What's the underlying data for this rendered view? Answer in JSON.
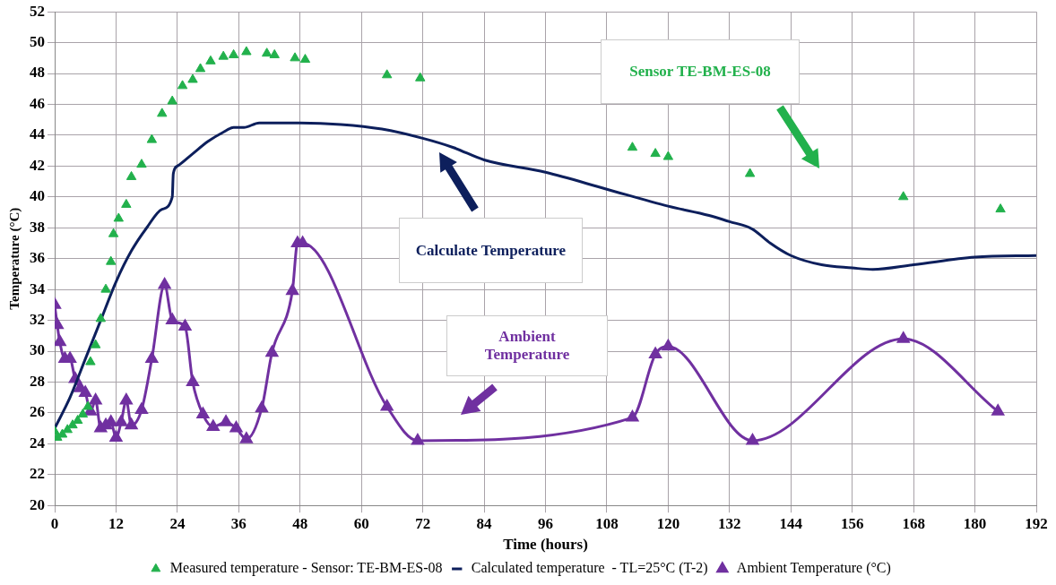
{
  "chart_data": {
    "type": "line",
    "xlabel": "Time (hours)",
    "ylabel": "Temperature (°C)",
    "xlim": [
      0,
      192
    ],
    "xticks": [
      0,
      12,
      24,
      36,
      48,
      60,
      72,
      84,
      96,
      108,
      120,
      132,
      144,
      156,
      168,
      180,
      192
    ],
    "ylim": [
      20,
      52
    ],
    "yticks": [
      20,
      22,
      24,
      26,
      28,
      30,
      32,
      34,
      36,
      38,
      40,
      42,
      44,
      46,
      48,
      50,
      52
    ],
    "grid": true,
    "legend": "bottom",
    "series": [
      {
        "name": "Measured temperature - Sensor: TE-BM-ES-08",
        "type": "scatter",
        "marker": "triangle",
        "color": "#22b14c",
        "x": [
          0,
          0.5,
          1.5,
          2.5,
          3.5,
          4.5,
          5.5,
          6.5,
          7,
          8,
          9,
          10,
          11,
          11.5,
          12.5,
          14,
          15,
          17,
          19,
          21,
          23,
          25,
          27,
          28.5,
          30.5,
          33,
          35,
          37.5,
          41.5,
          43,
          47,
          49,
          65,
          71.5,
          113,
          117.5,
          120,
          136,
          166,
          185
        ],
        "values": [
          24.8,
          24.4,
          24.6,
          24.9,
          25.2,
          25.5,
          25.9,
          26.4,
          29.3,
          30.4,
          32.1,
          34,
          35.8,
          37.6,
          38.6,
          39.5,
          41.3,
          42.1,
          43.7,
          45.4,
          46.2,
          47.2,
          47.6,
          48.3,
          48.8,
          49.1,
          49.2,
          49.4,
          49.3,
          49.2,
          49,
          48.9,
          47.9,
          47.7,
          43.2,
          42.8,
          42.6,
          41.5,
          40,
          39.2
        ]
      },
      {
        "name": "Calculated temperature  - TL=25°C (T-2)",
        "marker": "none",
        "color": "#0d1f5c",
        "x": [
          0,
          3,
          6,
          9,
          12,
          15,
          18,
          21,
          23,
          23.2,
          24,
          27,
          30,
          33,
          35,
          37,
          40,
          48,
          56,
          64,
          72,
          78,
          84,
          96,
          108,
          120,
          128,
          132,
          136,
          137,
          140,
          144,
          150,
          156,
          160,
          168,
          180,
          192
        ],
        "values": [
          25,
          27,
          29.5,
          32,
          34.5,
          36.5,
          38,
          39.2,
          40,
          41.5,
          42,
          42.8,
          43.6,
          44.2,
          44.5,
          44.5,
          44.8,
          44.8,
          44.7,
          44.4,
          43.8,
          43.2,
          42.4,
          41.6,
          40.5,
          39.4,
          38.8,
          38.4,
          38,
          37.8,
          37,
          36.2,
          35.6,
          35.4,
          35.3,
          35.6,
          36.1,
          36.2
        ]
      },
      {
        "name": "Ambient Temperature (°C)",
        "marker": "triangle",
        "color": "#7030a0",
        "x": [
          0,
          0.5,
          1,
          2,
          3,
          4,
          5,
          6,
          7,
          8,
          9,
          10,
          11,
          12,
          13,
          14,
          15,
          17,
          19,
          21.5,
          23,
          25.5,
          27,
          29,
          31,
          33.5,
          35.5,
          37.5,
          40.5,
          42.5,
          46.5,
          47.5,
          48.5,
          65,
          71,
          113,
          117.5,
          120,
          136.5,
          166,
          184.5
        ],
        "values": [
          33,
          31.7,
          30.6,
          29.5,
          29.5,
          28.2,
          27.6,
          27.3,
          26.1,
          26.8,
          25,
          25.2,
          25.4,
          24.4,
          25.4,
          26.8,
          25.2,
          26.2,
          29.5,
          34.3,
          32,
          31.6,
          28,
          25.9,
          25.1,
          25.4,
          25,
          24.3,
          26.3,
          29.9,
          33.9,
          37,
          37,
          26.4,
          24.2,
          25.7,
          29.8,
          30.3,
          24.2,
          30.8,
          26.1
        ]
      }
    ],
    "annotations": [
      "Sensor TE-BM-ES-08",
      "Calculate Temperature",
      "Ambient Temperature"
    ]
  }
}
